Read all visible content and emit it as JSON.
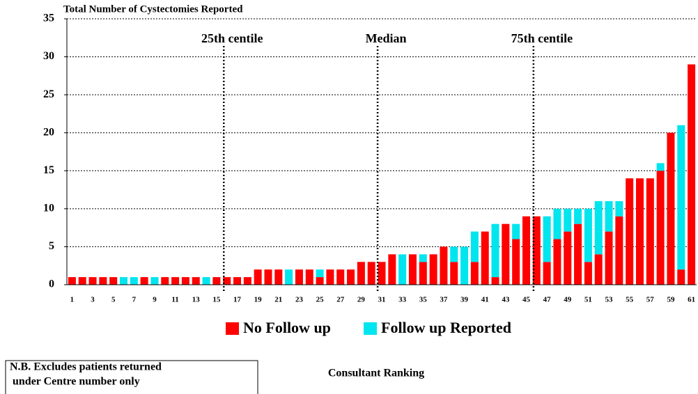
{
  "chart_data": {
    "type": "stacked_bar",
    "title": "Total  Number of Cystectomies Reported",
    "x_label": "Consultant Ranking",
    "note": [
      "N.B. Excludes patients returned",
      " under Centre number only"
    ],
    "categories": [
      1,
      null,
      3,
      null,
      5,
      null,
      7,
      null,
      9,
      null,
      11,
      null,
      13,
      null,
      15,
      null,
      17,
      null,
      19,
      null,
      21,
      null,
      23,
      null,
      25,
      null,
      27,
      null,
      29,
      null,
      31,
      null,
      33,
      null,
      35,
      null,
      37,
      null,
      39,
      null,
      41,
      null,
      43,
      null,
      45,
      null,
      47,
      null,
      49,
      null,
      51,
      null,
      53,
      null,
      55,
      null,
      57,
      null,
      59,
      null,
      61
    ],
    "series": [
      {
        "name": "No  Follow up",
        "color": "#ff0000",
        "values": [
          1,
          1,
          1,
          1,
          1,
          0,
          0,
          1,
          0,
          1,
          1,
          1,
          1,
          0,
          1,
          1,
          1,
          1,
          2,
          2,
          2,
          0,
          2,
          2,
          1,
          2,
          2,
          2,
          3,
          3,
          3,
          4,
          0,
          4,
          3,
          4,
          5,
          3,
          0,
          3,
          7,
          1,
          8,
          6,
          9,
          9,
          3,
          6,
          7,
          8,
          3,
          4,
          7,
          9,
          14,
          14,
          14,
          15,
          20,
          2,
          29
        ]
      },
      {
        "name": "Follow up Reported",
        "color": "#00e5ee",
        "values": [
          0,
          0,
          0,
          0,
          0,
          1,
          1,
          0,
          1,
          0,
          0,
          0,
          0,
          1,
          0,
          0,
          0,
          0,
          0,
          0,
          0,
          2,
          0,
          0,
          1,
          0,
          0,
          0,
          0,
          0,
          0,
          0,
          4,
          0,
          1,
          0,
          0,
          2,
          5,
          4,
          0,
          7,
          0,
          2,
          0,
          0,
          6,
          4,
          3,
          2,
          7,
          7,
          4,
          2,
          0,
          0,
          0,
          1,
          0,
          19,
          0
        ]
      }
    ],
    "centiles": [
      {
        "label": "25th centile",
        "x": 15.7
      },
      {
        "label": "Median",
        "x": 30.6
      },
      {
        "label": "75th centile",
        "x": 45.7
      }
    ],
    "ylim": [
      0,
      35
    ],
    "yticks": [
      0,
      5,
      10,
      15,
      20,
      25,
      30,
      35
    ],
    "grid": true
  }
}
